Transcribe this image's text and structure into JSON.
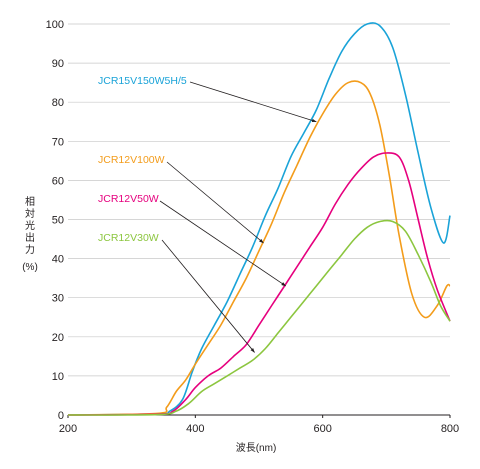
{
  "chart_data": {
    "type": "line",
    "xlabel": "波長(nm)",
    "ylabel": "相対光出力",
    "ylabel_unit": "(%)",
    "xlim": [
      200,
      800
    ],
    "ylim": [
      0,
      100
    ],
    "xticks": [
      200,
      400,
      600,
      800
    ],
    "yticks": [
      0,
      10,
      20,
      30,
      40,
      50,
      60,
      70,
      80,
      90,
      100
    ],
    "grid": "horizontal",
    "series": [
      {
        "name": "JCR15V150W5H/5",
        "color": "#1aa3d8",
        "points": [
          [
            200,
            0
          ],
          [
            340,
            0.3
          ],
          [
            360,
            1
          ],
          [
            380,
            4
          ],
          [
            395,
            11
          ],
          [
            410,
            17
          ],
          [
            430,
            23
          ],
          [
            450,
            29
          ],
          [
            470,
            36
          ],
          [
            490,
            43
          ],
          [
            510,
            51
          ],
          [
            530,
            58
          ],
          [
            550,
            66
          ],
          [
            570,
            72
          ],
          [
            590,
            78
          ],
          [
            610,
            86
          ],
          [
            630,
            93
          ],
          [
            650,
            97.5
          ],
          [
            670,
            100
          ],
          [
            690,
            99.5
          ],
          [
            710,
            94
          ],
          [
            730,
            82
          ],
          [
            750,
            67
          ],
          [
            770,
            53
          ],
          [
            790,
            44
          ],
          [
            800,
            51
          ]
        ]
      },
      {
        "name": "JCR12V100W",
        "color": "#f39c1b",
        "points": [
          [
            200,
            0
          ],
          [
            340,
            0.4
          ],
          [
            355,
            2
          ],
          [
            370,
            6
          ],
          [
            385,
            9
          ],
          [
            400,
            13
          ],
          [
            420,
            18
          ],
          [
            440,
            23
          ],
          [
            460,
            29
          ],
          [
            480,
            35
          ],
          [
            500,
            42
          ],
          [
            520,
            49
          ],
          [
            540,
            57
          ],
          [
            560,
            64
          ],
          [
            580,
            71
          ],
          [
            600,
            77
          ],
          [
            620,
            82
          ],
          [
            640,
            85
          ],
          [
            660,
            85
          ],
          [
            675,
            82
          ],
          [
            690,
            74
          ],
          [
            705,
            61
          ],
          [
            720,
            46
          ],
          [
            740,
            31
          ],
          [
            760,
            25
          ],
          [
            780,
            28
          ],
          [
            795,
            33
          ],
          [
            800,
            33
          ]
        ]
      },
      {
        "name": "JCR12V50W",
        "color": "#e6007e",
        "points": [
          [
            200,
            0
          ],
          [
            340,
            0.2
          ],
          [
            365,
            1
          ],
          [
            385,
            4
          ],
          [
            400,
            7
          ],
          [
            420,
            10
          ],
          [
            440,
            12
          ],
          [
            460,
            15
          ],
          [
            480,
            18
          ],
          [
            500,
            23
          ],
          [
            520,
            28
          ],
          [
            540,
            33
          ],
          [
            560,
            38
          ],
          [
            580,
            43
          ],
          [
            600,
            48
          ],
          [
            620,
            54
          ],
          [
            640,
            59
          ],
          [
            660,
            63
          ],
          [
            680,
            66
          ],
          [
            700,
            67
          ],
          [
            720,
            66
          ],
          [
            735,
            60
          ],
          [
            750,
            50
          ],
          [
            765,
            40
          ],
          [
            780,
            32
          ],
          [
            800,
            24
          ]
        ]
      },
      {
        "name": "JCR12V30W",
        "color": "#8cc63f",
        "points": [
          [
            200,
            0
          ],
          [
            340,
            0.1
          ],
          [
            370,
            1
          ],
          [
            390,
            3
          ],
          [
            410,
            6
          ],
          [
            430,
            8
          ],
          [
            450,
            10
          ],
          [
            470,
            12
          ],
          [
            490,
            14
          ],
          [
            510,
            17
          ],
          [
            530,
            21
          ],
          [
            550,
            25
          ],
          [
            570,
            29
          ],
          [
            590,
            33
          ],
          [
            610,
            37
          ],
          [
            630,
            41
          ],
          [
            650,
            45
          ],
          [
            670,
            48
          ],
          [
            690,
            49.5
          ],
          [
            710,
            49.5
          ],
          [
            730,
            47
          ],
          [
            750,
            41
          ],
          [
            770,
            34
          ],
          [
            785,
            28
          ],
          [
            800,
            24
          ]
        ]
      }
    ],
    "annotations": [
      {
        "series": "JCR15V150W5H/5",
        "arrow_to": [
          590,
          75
        ]
      },
      {
        "series": "JCR12V100W",
        "arrow_to": [
          507,
          44
        ]
      },
      {
        "series": "JCR12V50W",
        "arrow_to": [
          542,
          33
        ]
      },
      {
        "series": "JCR12V30W",
        "arrow_to": [
          493,
          16
        ]
      }
    ]
  }
}
